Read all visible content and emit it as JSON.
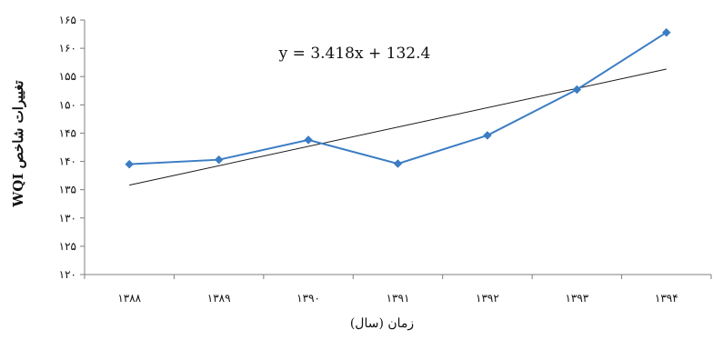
{
  "chart_data": {
    "type": "line",
    "title": "",
    "xlabel": "زمان (سال)",
    "ylabel": "تغییرات شاخص WQI",
    "categories": [
      "۱۳۸۸",
      "۱۳۸۹",
      "۱۳۹۰",
      "۱۳۹۱",
      "۱۳۹۲",
      "۱۳۹۳",
      "۱۳۹۴"
    ],
    "y_ticks": [
      "۱۲۰",
      "۱۲۵",
      "۱۳۰",
      "۱۳۵",
      "۱۴۰",
      "۱۴۵",
      "۱۵۰",
      "۱۵۵",
      "۱۶۰",
      "۱۶۵"
    ],
    "ylim": [
      120,
      165
    ],
    "series": [
      {
        "values": [
          139.5,
          140.3,
          143.8,
          139.6,
          144.6,
          152.7,
          162.8
        ],
        "color": "#3b7dc4",
        "marker": "diamond"
      }
    ],
    "trendline": {
      "equation": "y = 3.418x + 132.4",
      "slope": 3.418,
      "intercept": 132.4,
      "color": "#1a1a1a"
    },
    "grid": false,
    "legend": "none"
  }
}
